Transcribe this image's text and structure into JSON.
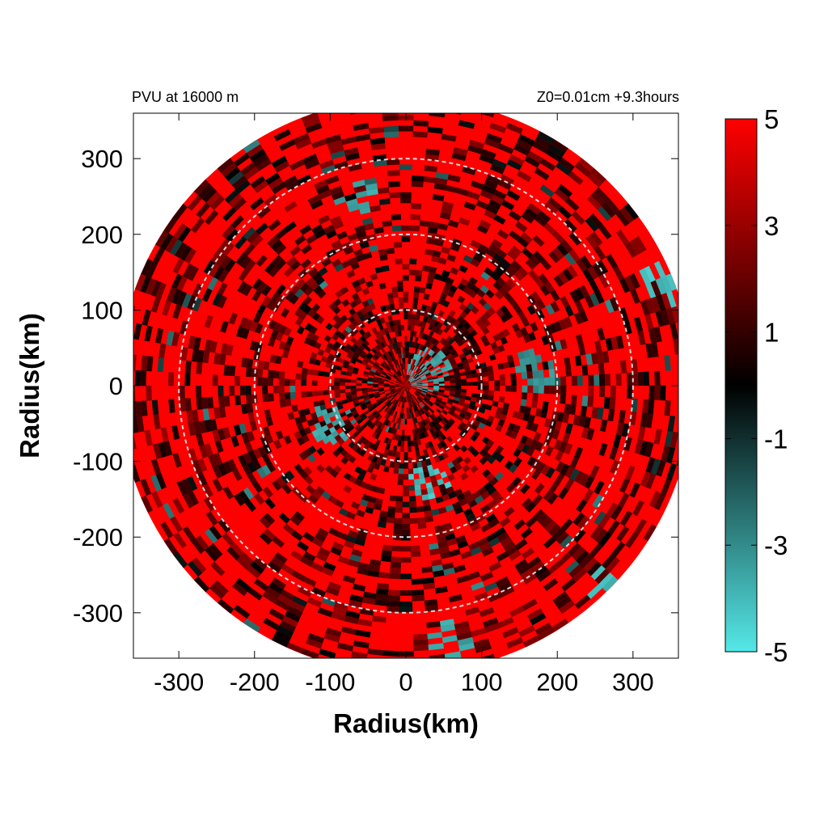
{
  "chart_data": {
    "type": "heatmap",
    "title_left": "PVU at 16000 m",
    "title_right": "Z0=0.01cm  +9.3hours",
    "xlabel": "Radius(km)",
    "ylabel": "Radius(km)",
    "xlim": [
      -360,
      360
    ],
    "ylim": [
      -360,
      360
    ],
    "x_ticks": [
      -300,
      -200,
      -100,
      0,
      100,
      200,
      300
    ],
    "y_ticks": [
      -300,
      -200,
      -100,
      0,
      100,
      200,
      300
    ],
    "x_tick_labels": [
      "-300",
      "-200",
      "-100",
      "0",
      "100",
      "200",
      "300"
    ],
    "y_tick_labels": [
      "-300",
      "-200",
      "-100",
      "0",
      "100",
      "200",
      "300"
    ],
    "domain_radius_km": 380,
    "range_rings_km": [
      100,
      200,
      300
    ],
    "ring_color": "#d9d9d9",
    "colorbar": {
      "min": -5,
      "max": 5,
      "ticks": [
        5,
        3,
        1,
        -1,
        -3,
        -5
      ],
      "tick_labels": [
        "5",
        "3",
        "1",
        "-1",
        "-3",
        "-5"
      ],
      "colors": {
        "max": "#ff0000",
        "mid": "#000000",
        "min": "#55e8e8"
      }
    },
    "field_summary": {
      "dominant_value": 5,
      "negative_anomaly_regions_km": [
        {
          "x": 30,
          "y": -130,
          "value": -4.5
        },
        {
          "x": 270,
          "y": -270,
          "value": -4.5
        },
        {
          "x": 340,
          "y": 140,
          "value": -4.5
        },
        {
          "x": -60,
          "y": 250,
          "value": -4
        },
        {
          "x": 170,
          "y": 20,
          "value": -3.5
        },
        {
          "x": -100,
          "y": -50,
          "value": -4
        },
        {
          "x": 30,
          "y": 20,
          "value": -4
        },
        {
          "x": 60,
          "y": -340,
          "value": -4
        }
      ]
    }
  }
}
